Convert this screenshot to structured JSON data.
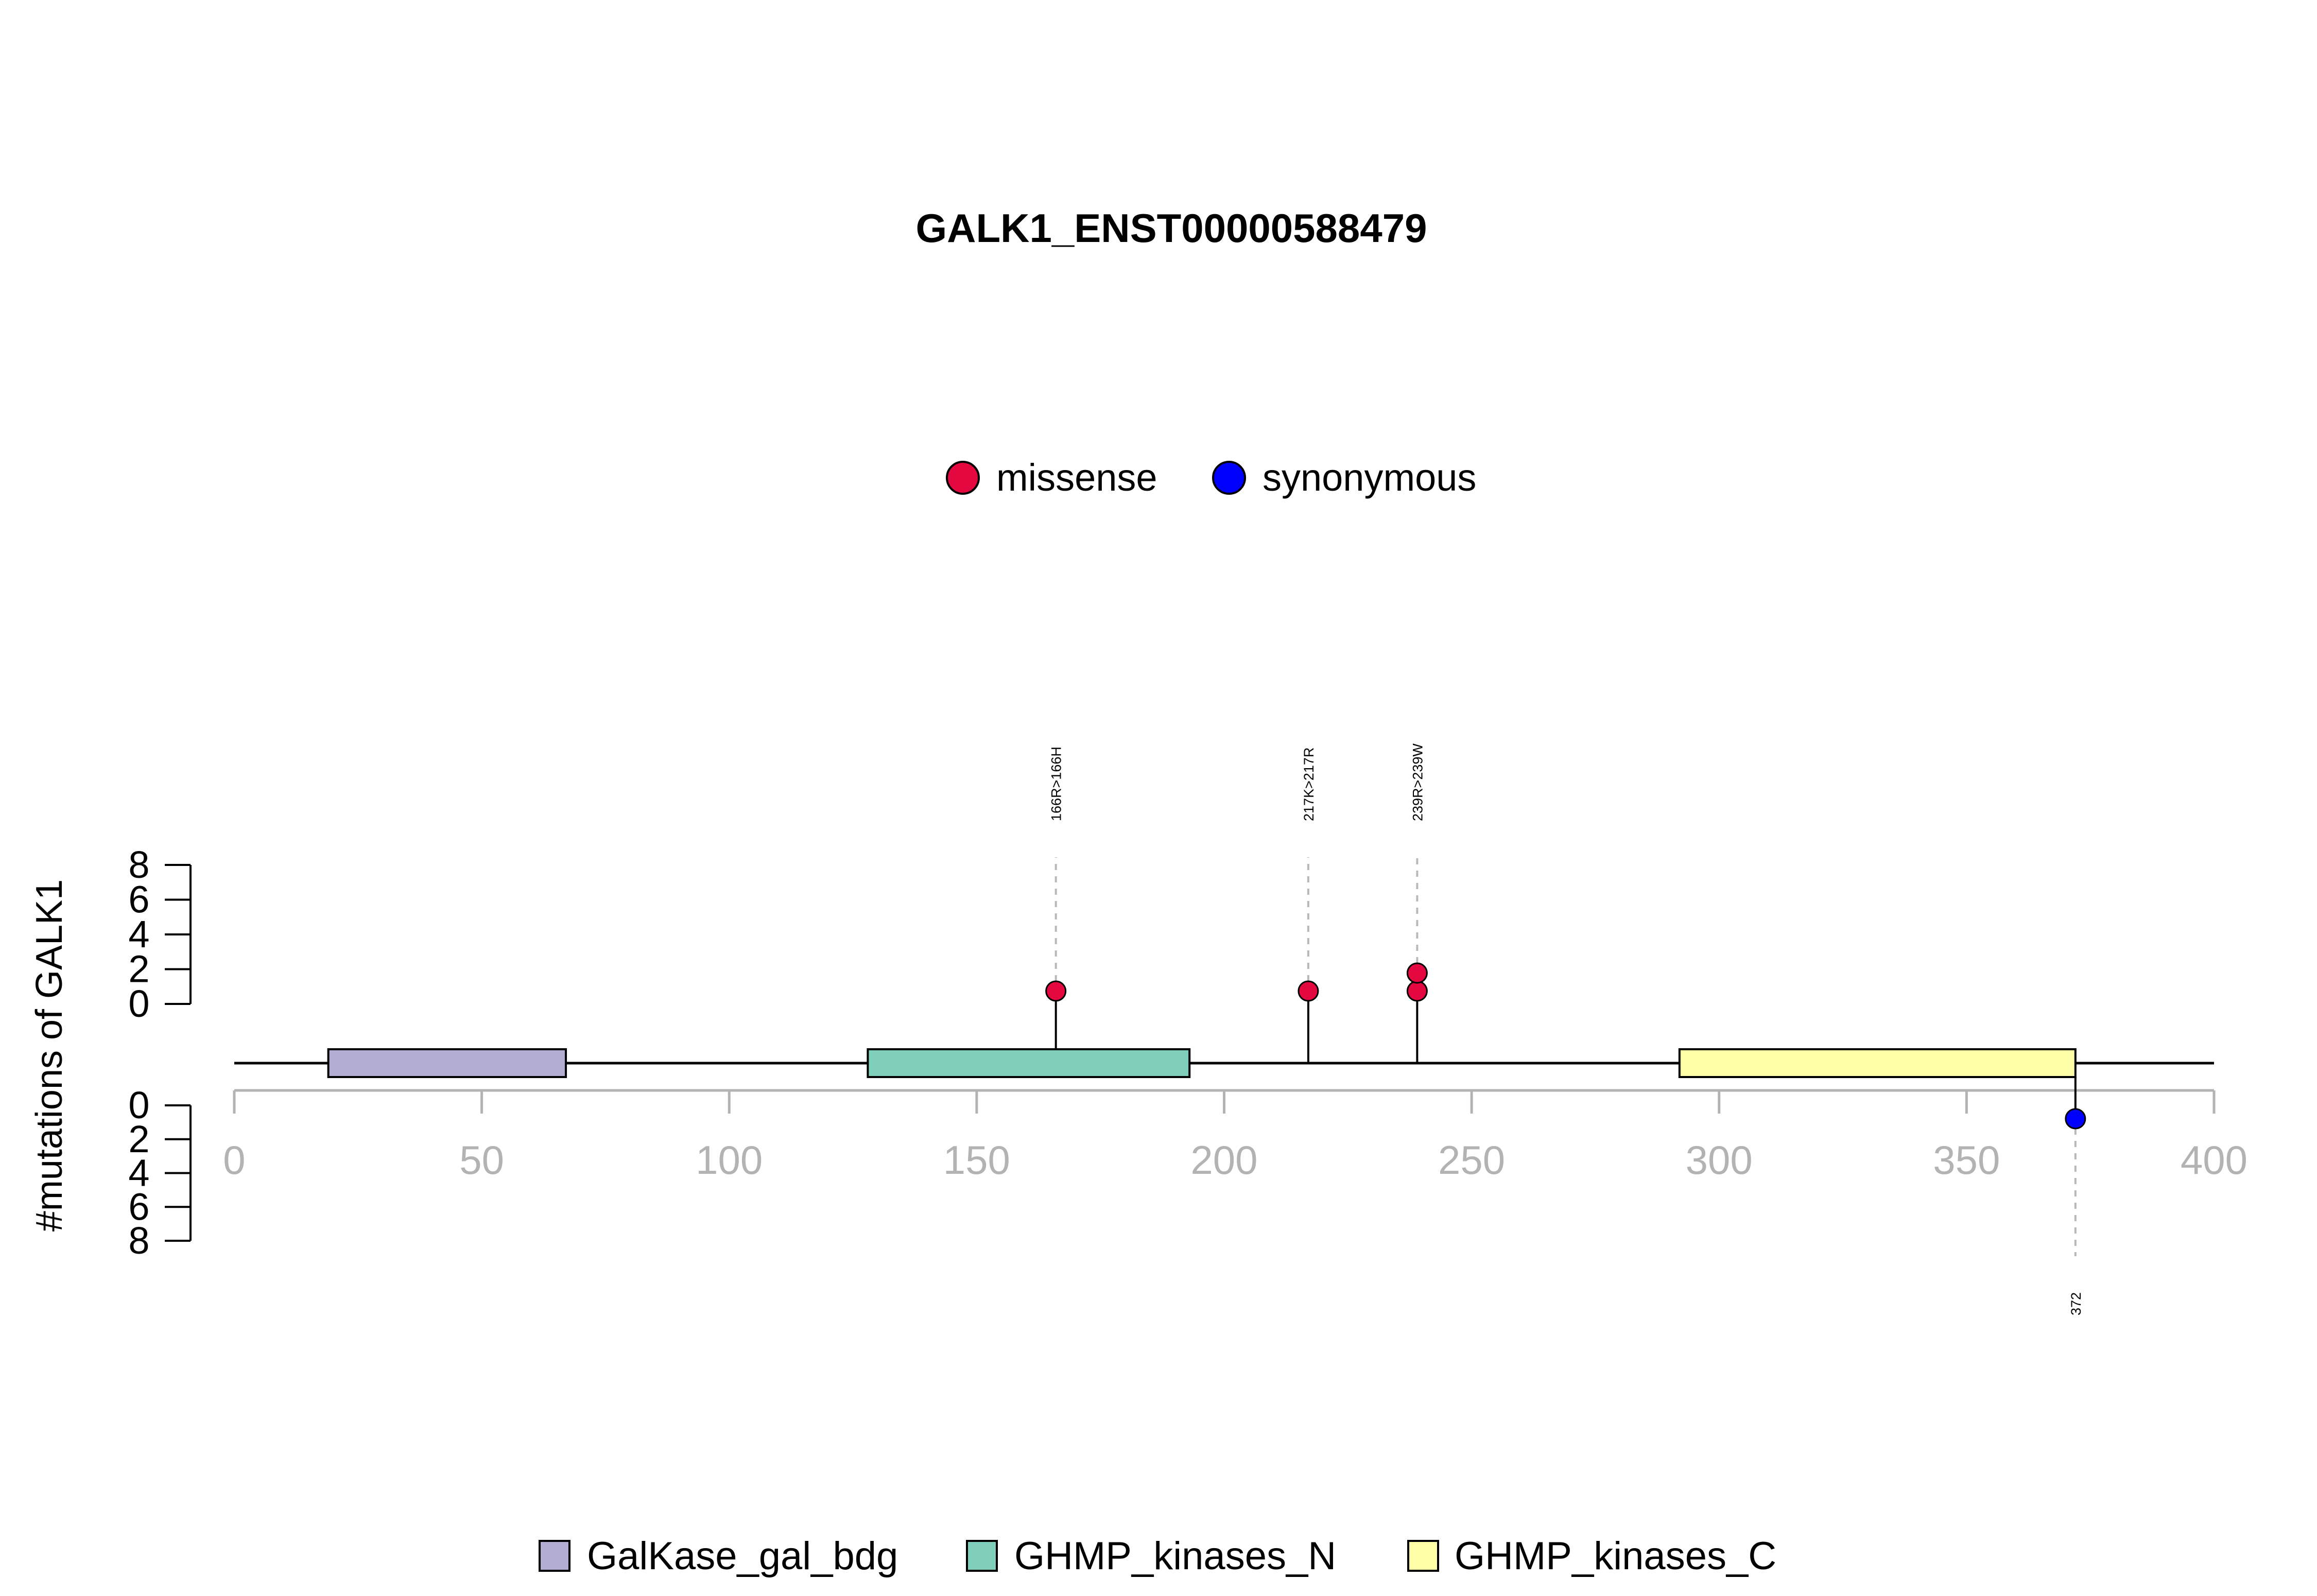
{
  "chart_data": {
    "type": "lollipop",
    "title": "GALK1_ENST00000588479",
    "ylabel": "#mutations of GALK1",
    "xlim": [
      0,
      400
    ],
    "x_ticks": [
      0,
      50,
      100,
      150,
      200,
      250,
      300,
      350,
      400
    ],
    "ylim_top": [
      0,
      8
    ],
    "ylim_bottom": [
      0,
      8
    ],
    "y_ticks_top": [
      0,
      2,
      4,
      6,
      8
    ],
    "y_ticks_bottom": [
      0,
      2,
      4,
      6,
      8
    ],
    "protein_length": 400,
    "legend_mutation_types": [
      {
        "label": "missense",
        "color": "#e3083f"
      },
      {
        "label": "synonymous",
        "color": "#0000ff"
      }
    ],
    "domains": [
      {
        "name": "GalKase_gal_bdg",
        "start": 19,
        "end": 67,
        "color": "#b3acd3"
      },
      {
        "name": "GHMP_kinases_N",
        "start": 128,
        "end": 193,
        "color": "#7fcdbb"
      },
      {
        "name": "GHMP_kinases_C",
        "start": 292,
        "end": 372,
        "color": "#ffffa8"
      }
    ],
    "mutations_top": [
      {
        "position": 166,
        "count": 1,
        "type": "missense",
        "label": "166R>166H"
      },
      {
        "position": 217,
        "count": 1,
        "type": "missense",
        "label": "217K>217R"
      },
      {
        "position": 239,
        "count": 2,
        "type": "missense",
        "label": "239R>239W"
      }
    ],
    "mutations_bottom": [
      {
        "position": 372,
        "count": 1,
        "type": "synonymous",
        "label": "372"
      }
    ]
  }
}
